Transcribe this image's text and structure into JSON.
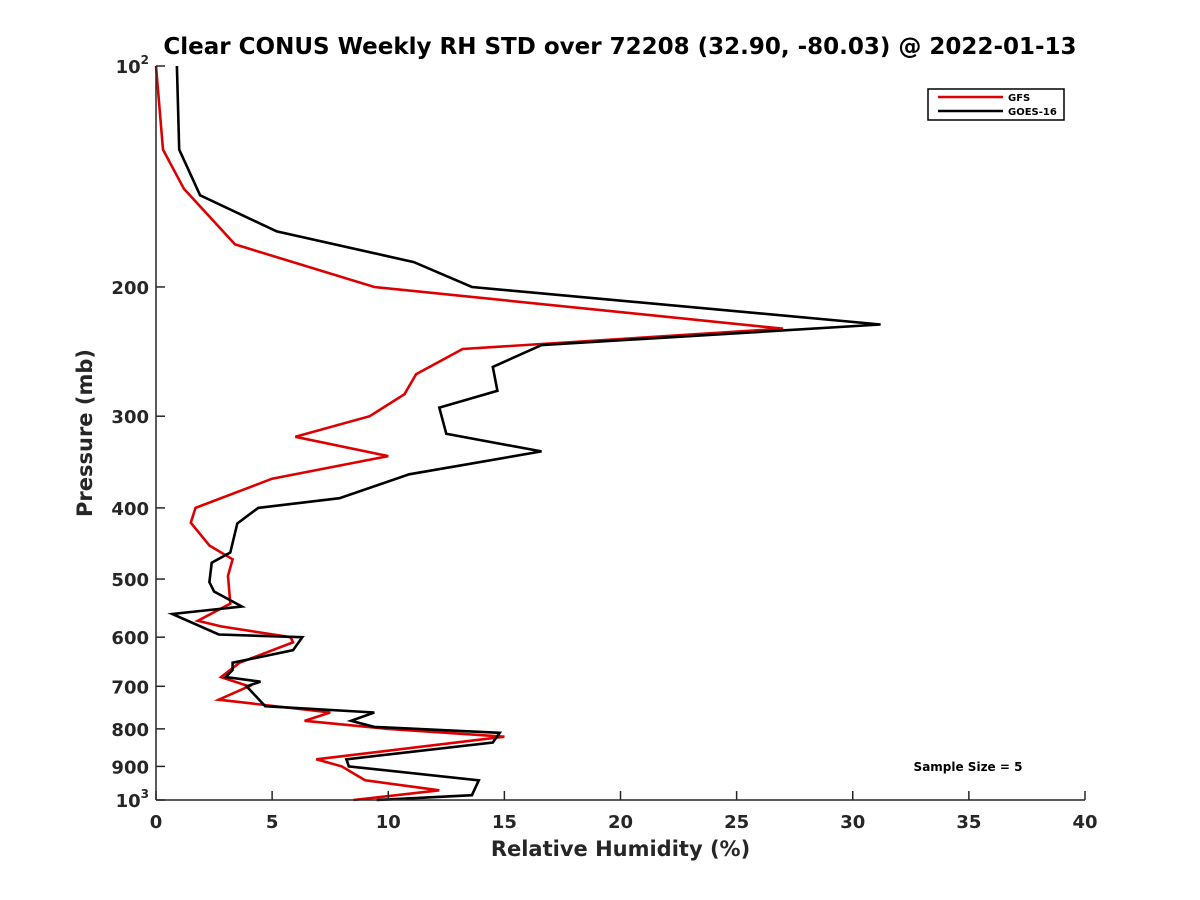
{
  "chart_data": {
    "type": "line",
    "title": "Clear CONUS Weekly RH STD over 72208 (32.90, -80.03) @ 2022-01-13",
    "xlabel": "Relative Humidity (%)",
    "ylabel": "Pressure (mb)",
    "xlim": [
      0,
      40
    ],
    "ylim": [
      100,
      1000
    ],
    "y_scale": "log",
    "y_reversed": true,
    "x_ticks": [
      {
        "value": 0,
        "label": "0"
      },
      {
        "value": 5,
        "label": "5"
      },
      {
        "value": 10,
        "label": "10"
      },
      {
        "value": 15,
        "label": "15"
      },
      {
        "value": 20,
        "label": "20"
      },
      {
        "value": 25,
        "label": "25"
      },
      {
        "value": 30,
        "label": "30"
      },
      {
        "value": 35,
        "label": "35"
      },
      {
        "value": 40,
        "label": "40"
      }
    ],
    "y_ticks": [
      {
        "value": 100,
        "base": "10",
        "sup": "2"
      },
      {
        "value": 200,
        "label": "200"
      },
      {
        "value": 300,
        "label": "300"
      },
      {
        "value": 400,
        "label": "400"
      },
      {
        "value": 500,
        "label": "500"
      },
      {
        "value": 600,
        "label": "600"
      },
      {
        "value": 700,
        "label": "700"
      },
      {
        "value": 800,
        "label": "800"
      },
      {
        "value": 900,
        "label": "900"
      },
      {
        "value": 1000,
        "base": "10",
        "sup": "3"
      }
    ],
    "grid": false,
    "legend_position": "top-right",
    "series": [
      {
        "name": "GFS",
        "color": "#dd0000",
        "x": [
          0.0,
          0.3,
          1.2,
          3.4,
          9.4,
          27.0,
          13.2,
          11.2,
          10.7,
          9.2,
          6.0,
          10.0,
          5.0,
          1.7,
          1.5,
          2.3,
          3.3,
          3.1,
          3.2,
          1.8,
          2.8,
          5.8,
          5.9,
          3.6,
          2.8,
          4.0,
          2.7,
          7.5,
          6.4,
          10.0,
          15.0,
          6.9,
          8.0,
          9.0,
          12.2,
          8.5
        ],
        "y": [
          100,
          130,
          147,
          175,
          200,
          228,
          243,
          263,
          280,
          300,
          320,
          340,
          365,
          400,
          419,
          450,
          470,
          495,
          540,
          570,
          580,
          600,
          610,
          650,
          680,
          700,
          730,
          760,
          780,
          800,
          820,
          880,
          900,
          940,
          970,
          1000
        ]
      },
      {
        "name": "GOES-16",
        "color": "#000000",
        "x": [
          0.9,
          1.0,
          1.9,
          5.2,
          11.1,
          13.6,
          31.2,
          16.6,
          14.5,
          14.7,
          12.2,
          12.5,
          16.6,
          10.9,
          7.9,
          4.4,
          3.5,
          3.2,
          2.4,
          2.3,
          2.5,
          3.7,
          0.7,
          2.7,
          6.3,
          5.9,
          3.3,
          3.3,
          3.0,
          4.5,
          3.9,
          4.7,
          9.4,
          8.4,
          9.4,
          14.8,
          14.5,
          8.2,
          8.3,
          13.9,
          13.6,
          9.5
        ],
        "y": [
          100,
          130,
          150,
          168,
          185,
          200,
          225,
          240,
          257,
          277,
          292,
          317,
          335,
          360,
          388,
          400,
          420,
          460,
          475,
          505,
          520,
          545,
          558,
          595,
          600,
          625,
          650,
          665,
          680,
          690,
          700,
          745,
          760,
          780,
          795,
          810,
          835,
          880,
          900,
          940,
          985,
          1000
        ]
      }
    ],
    "annotation": "Sample Size = 5"
  }
}
